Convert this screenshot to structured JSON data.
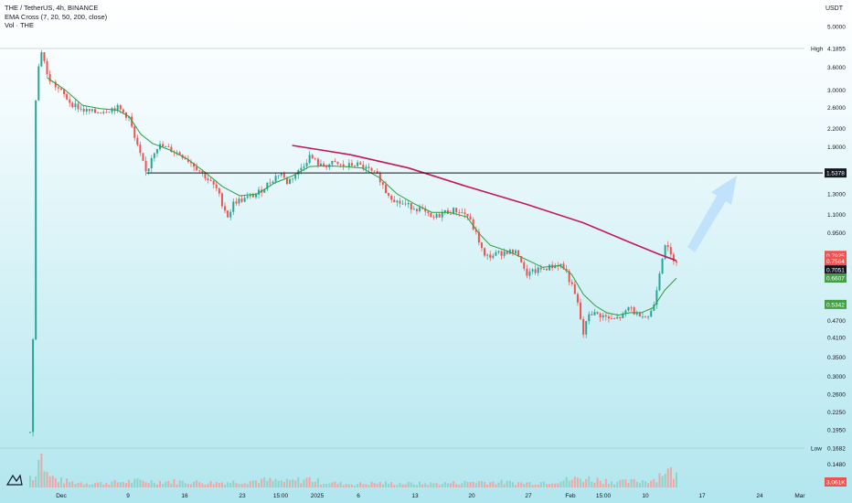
{
  "legend": {
    "symbol_line": "THE / TetherUS, 4h, BINANCE",
    "ema_line": "EMA Cross (7, 20, 50, 200, close)",
    "vol_line": "Vol · THE"
  },
  "currency": "USDT",
  "colors": {
    "up": "#26a69a",
    "down": "#ef5350",
    "ema_fast": "#2e9e3a",
    "ema_slow": "#c2185b",
    "support": "#131722",
    "arrow": "#bbdefb"
  },
  "icons": {
    "logo": "tradingview-logo-icon"
  },
  "chart_data": {
    "type": "candlestick",
    "y_scale": "log",
    "y_ticks": [
      "5.0000",
      "3.6000",
      "3.0000",
      "2.6000",
      "2.2000",
      "1.9000",
      "1.3000",
      "1.1000",
      "0.9500",
      "0.4700",
      "0.4100",
      "0.3500",
      "0.3000",
      "0.2600",
      "0.2250",
      "0.1950",
      "0.1480"
    ],
    "x_ticks": [
      "Dec",
      "9",
      "16",
      "23",
      "15:00",
      "2025",
      "6",
      "13",
      "20",
      "27",
      "Feb",
      "15:00",
      "10",
      "17",
      "24",
      "Mar"
    ],
    "high": {
      "label": "High",
      "value": "4.1855"
    },
    "low": {
      "label": "Low",
      "value": "0.1682"
    },
    "support_level": "1.5378",
    "price_tags": [
      {
        "value": "0.7925",
        "color": "#ef5350"
      },
      {
        "value": "0.7564",
        "color": "#ef5350"
      },
      {
        "value": "02:39:40",
        "color": "#ef5350"
      },
      {
        "value": "0.7051",
        "color": "#131722"
      },
      {
        "value": "0.6607",
        "color": "#43a047"
      },
      {
        "value": "0.5342",
        "color": "#43a047"
      }
    ],
    "volume_tag": "3.061K",
    "price_path": [
      [
        0,
        0.19
      ],
      [
        0.5,
        0.42
      ],
      [
        1,
        3.2
      ],
      [
        2,
        4.18
      ],
      [
        3,
        3.3
      ],
      [
        5,
        3.0
      ],
      [
        7,
        2.7
      ],
      [
        9,
        2.55
      ],
      [
        11,
        2.5
      ],
      [
        13,
        2.55
      ],
      [
        15,
        2.6
      ],
      [
        17,
        2.4
      ],
      [
        18,
        2.0
      ],
      [
        19,
        1.75
      ],
      [
        20,
        1.52
      ],
      [
        21,
        1.8
      ],
      [
        22,
        1.92
      ],
      [
        24,
        1.86
      ],
      [
        26,
        1.78
      ],
      [
        28,
        1.65
      ],
      [
        30,
        1.5
      ],
      [
        32,
        1.35
      ],
      [
        33,
        1.2
      ],
      [
        34,
        1.08
      ],
      [
        35,
        1.22
      ],
      [
        37,
        1.25
      ],
      [
        39,
        1.3
      ],
      [
        41,
        1.42
      ],
      [
        43,
        1.55
      ],
      [
        44,
        1.42
      ],
      [
        46,
        1.55
      ],
      [
        48,
        1.76
      ],
      [
        50,
        1.62
      ],
      [
        52,
        1.66
      ],
      [
        54,
        1.62
      ],
      [
        56,
        1.65
      ],
      [
        58,
        1.58
      ],
      [
        60,
        1.48
      ],
      [
        61,
        1.33
      ],
      [
        63,
        1.22
      ],
      [
        65,
        1.18
      ],
      [
        67,
        1.15
      ],
      [
        69,
        1.06
      ],
      [
        71,
        1.12
      ],
      [
        73,
        1.14
      ],
      [
        75,
        1.1
      ],
      [
        76,
        1.0
      ],
      [
        77,
        0.9
      ],
      [
        78,
        0.78
      ],
      [
        80,
        0.8
      ],
      [
        82,
        0.82
      ],
      [
        84,
        0.8
      ],
      [
        85,
        0.68
      ],
      [
        87,
        0.7
      ],
      [
        89,
        0.72
      ],
      [
        91,
        0.74
      ],
      [
        92,
        0.7
      ],
      [
        93,
        0.62
      ],
      [
        94,
        0.54
      ],
      [
        95,
        0.42
      ],
      [
        96,
        0.5
      ],
      [
        98,
        0.49
      ],
      [
        100,
        0.47
      ],
      [
        102,
        0.49
      ],
      [
        103,
        0.53
      ],
      [
        104,
        0.49
      ],
      [
        105,
        0.5
      ],
      [
        106,
        0.48
      ],
      [
        107,
        0.52
      ],
      [
        108,
        0.68
      ],
      [
        109,
        0.88
      ],
      [
        110,
        0.79
      ],
      [
        111,
        0.76
      ]
    ],
    "ema_fast_path": [
      [
        3,
        3.3
      ],
      [
        6,
        3.0
      ],
      [
        9,
        2.65
      ],
      [
        12,
        2.58
      ],
      [
        15,
        2.55
      ],
      [
        17,
        2.42
      ],
      [
        19,
        2.1
      ],
      [
        21,
        1.95
      ],
      [
        24,
        1.85
      ],
      [
        27,
        1.72
      ],
      [
        30,
        1.55
      ],
      [
        33,
        1.38
      ],
      [
        36,
        1.28
      ],
      [
        39,
        1.3
      ],
      [
        42,
        1.42
      ],
      [
        45,
        1.5
      ],
      [
        48,
        1.62
      ],
      [
        51,
        1.63
      ],
      [
        54,
        1.62
      ],
      [
        57,
        1.6
      ],
      [
        60,
        1.48
      ],
      [
        63,
        1.3
      ],
      [
        66,
        1.2
      ],
      [
        69,
        1.12
      ],
      [
        72,
        1.12
      ],
      [
        75,
        1.08
      ],
      [
        77,
        0.95
      ],
      [
        79,
        0.86
      ],
      [
        82,
        0.82
      ],
      [
        85,
        0.77
      ],
      [
        88,
        0.72
      ],
      [
        91,
        0.73
      ],
      [
        93,
        0.68
      ],
      [
        95,
        0.58
      ],
      [
        97,
        0.53
      ],
      [
        99,
        0.5
      ],
      [
        101,
        0.49
      ],
      [
        103,
        0.5
      ],
      [
        105,
        0.5
      ],
      [
        107,
        0.52
      ],
      [
        109,
        0.6
      ],
      [
        111,
        0.66
      ]
    ],
    "ema_slow_path": [
      [
        45,
        1.92
      ],
      [
        55,
        1.78
      ],
      [
        65,
        1.6
      ],
      [
        75,
        1.38
      ],
      [
        85,
        1.2
      ],
      [
        95,
        1.03
      ],
      [
        103,
        0.88
      ],
      [
        108,
        0.8
      ],
      [
        111,
        0.76
      ]
    ],
    "volume": [
      [
        1,
        18000
      ],
      [
        1.5,
        9000
      ],
      [
        2,
        6000
      ],
      [
        3,
        2500
      ],
      [
        5,
        1500
      ],
      [
        8,
        1000
      ],
      [
        12,
        900
      ],
      [
        18,
        1300
      ],
      [
        25,
        1200
      ],
      [
        32,
        1000
      ],
      [
        40,
        1500
      ],
      [
        44,
        1200
      ],
      [
        48,
        1800
      ],
      [
        50,
        1100
      ],
      [
        55,
        700
      ],
      [
        60,
        900
      ],
      [
        65,
        800
      ],
      [
        70,
        800
      ],
      [
        77,
        1200
      ],
      [
        85,
        900
      ],
      [
        95,
        1900
      ],
      [
        102,
        1100
      ],
      [
        107,
        1600
      ],
      [
        109,
        3800
      ],
      [
        110,
        3100
      ],
      [
        111,
        2400
      ]
    ],
    "annotation": "up-arrow"
  }
}
